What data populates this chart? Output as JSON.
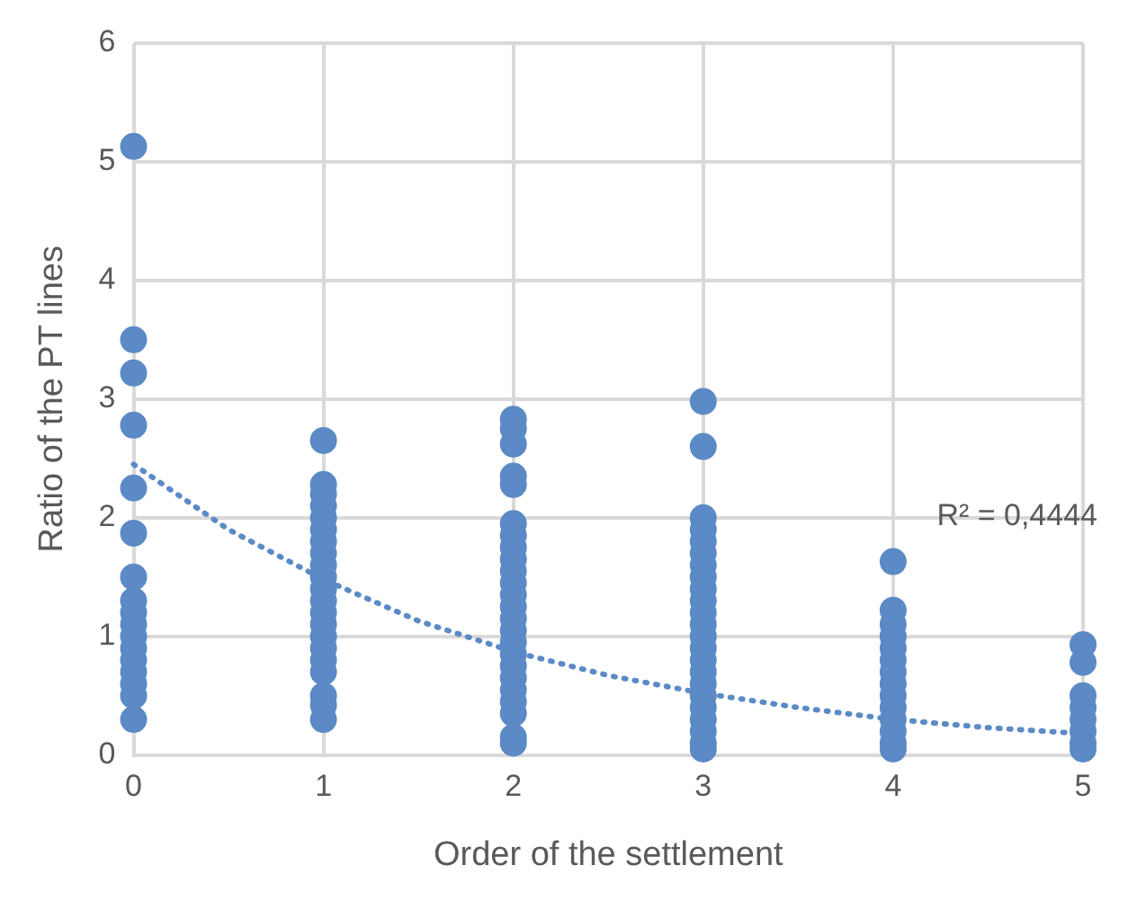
{
  "chart_data": {
    "type": "scatter",
    "xlabel": "Order of the settlement",
    "ylabel": "Ratio of the PT lines",
    "xlim": [
      0,
      5
    ],
    "xticks": [
      0,
      1,
      2,
      3,
      4,
      5
    ],
    "ylim": [
      0,
      6
    ],
    "yticks": [
      0,
      1,
      2,
      3,
      4,
      5,
      6
    ],
    "grid": true,
    "legend": false,
    "annotations": [
      "R² = 0,4444"
    ],
    "series": [
      {
        "color": "#5b8ac6",
        "marker": "circle",
        "x": [
          0,
          0,
          0,
          0,
          0,
          0,
          0,
          0,
          0,
          0,
          0,
          0,
          0,
          0,
          0,
          0,
          0,
          1,
          1,
          1,
          1,
          1,
          1,
          1,
          1,
          1,
          1,
          1,
          1,
          1,
          1,
          1,
          1,
          1,
          1,
          1,
          1,
          1,
          2,
          2,
          2,
          2,
          2,
          2,
          2,
          2,
          2,
          2,
          2,
          2,
          2,
          2,
          2,
          2,
          2,
          2,
          2,
          2,
          2,
          2,
          2,
          2,
          3,
          3,
          3,
          3,
          3,
          3,
          3,
          3,
          3,
          3,
          3,
          3,
          3,
          3,
          3,
          3,
          3,
          3,
          3,
          3,
          3,
          3,
          3,
          4,
          4,
          4,
          4,
          4,
          4,
          4,
          4,
          4,
          4,
          4,
          4,
          4,
          4,
          5,
          5,
          5,
          5,
          5,
          5,
          5,
          5
        ],
        "values": [
          5.13,
          3.5,
          3.22,
          2.78,
          2.25,
          1.87,
          1.5,
          1.3,
          1.2,
          1.1,
          1.0,
          0.9,
          0.8,
          0.7,
          0.6,
          0.5,
          0.3,
          2.65,
          2.28,
          2.2,
          2.1,
          2.0,
          1.9,
          1.8,
          1.7,
          1.6,
          1.5,
          1.4,
          1.3,
          1.2,
          1.1,
          1.0,
          0.9,
          0.8,
          0.7,
          0.5,
          0.42,
          0.3,
          2.83,
          2.75,
          2.62,
          2.35,
          2.28,
          1.95,
          1.85,
          1.75,
          1.65,
          1.55,
          1.45,
          1.35,
          1.25,
          1.15,
          1.05,
          0.95,
          0.85,
          0.75,
          0.65,
          0.55,
          0.45,
          0.35,
          0.15,
          0.1,
          2.98,
          2.6,
          2.0,
          1.9,
          1.8,
          1.7,
          1.6,
          1.5,
          1.4,
          1.3,
          1.2,
          1.1,
          1.0,
          0.9,
          0.8,
          0.7,
          0.6,
          0.5,
          0.4,
          0.3,
          0.2,
          0.1,
          0.05,
          1.63,
          1.22,
          1.1,
          1.0,
          0.9,
          0.8,
          0.7,
          0.6,
          0.5,
          0.4,
          0.3,
          0.2,
          0.1,
          0.05,
          0.93,
          0.78,
          0.5,
          0.4,
          0.3,
          0.2,
          0.1,
          0.05
        ]
      },
      {
        "type": "line",
        "color": "#5b8ac6",
        "marker": "none",
        "line_style": "dotted",
        "x": [
          0,
          0.5,
          1,
          1.5,
          2,
          2.5,
          3,
          3.5,
          4,
          4.5,
          5
        ],
        "values": [
          2.45,
          1.9,
          1.48,
          1.13,
          0.87,
          0.67,
          0.52,
          0.4,
          0.3,
          0.23,
          0.18
        ]
      }
    ]
  }
}
